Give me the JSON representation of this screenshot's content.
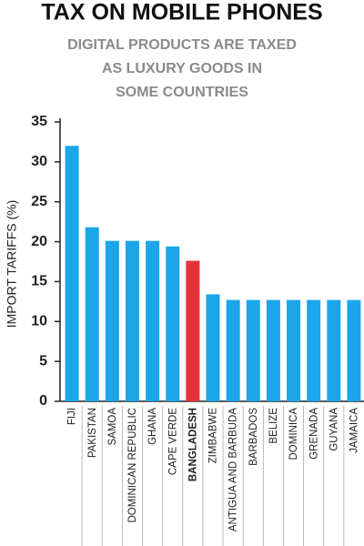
{
  "chart_data": {
    "type": "bar",
    "title": "TAX ON MOBILE PHONES",
    "subtitle": [
      "DIGITAL PRODUCTS ARE TAXED",
      "AS LUXURY GOODS IN",
      "SOME COUNTRIES"
    ],
    "y_label": "IMPORT TARIFFS (%)",
    "categories": [
      "FIJI",
      "PAKISTAN",
      "SAMOA",
      "DOMINICAN REPUBLIC",
      "GHANA",
      "CAPE VERDE",
      "BANGLADESH",
      "ZIMBABWE",
      "ANTIGUA AND BARBUDA",
      "BARBADOS",
      "BELIZE",
      "DOMINICA",
      "GRENADA",
      "GUYANA",
      "JAMAICA"
    ],
    "values": [
      32,
      21.8,
      20.1,
      20.1,
      20.1,
      19.4,
      17.6,
      13.4,
      12.7,
      12.7,
      12.7,
      12.7,
      12.7,
      12.7,
      12.7
    ],
    "colors": [
      "#1ba6ea",
      "#1ba6ea",
      "#1ba6ea",
      "#1ba6ea",
      "#1ba6ea",
      "#1ba6ea",
      "#e8323a",
      "#1ba6ea",
      "#1ba6ea",
      "#1ba6ea",
      "#1ba6ea",
      "#1ba6ea",
      "#1ba6ea",
      "#1ba6ea",
      "#1ba6ea"
    ],
    "ylim": [
      0,
      35
    ],
    "yticks": [
      0,
      5,
      10,
      15,
      20,
      25,
      30,
      35
    ],
    "grid": false
  }
}
